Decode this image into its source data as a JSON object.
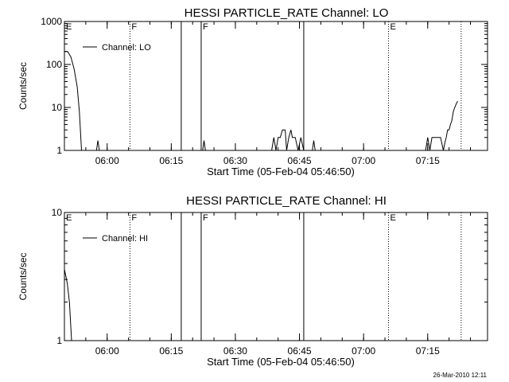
{
  "footer": {
    "date_stamp": "26-Mar-2010 12:11"
  },
  "chart_data": [
    {
      "type": "line",
      "title": "HESSI PARTICLE_RATE Channel: LO",
      "ylabel": "Counts/sec",
      "xlabel": "Start Time (05-Feb-04 05:46:50)",
      "y_scale": "log",
      "ylim": [
        1,
        1000
      ],
      "y_ticks": [
        {
          "value": 1,
          "label": "1"
        },
        {
          "value": 10,
          "label": "10"
        },
        {
          "value": 100,
          "label": "100"
        },
        {
          "value": 1000,
          "label": "1000"
        }
      ],
      "xlim": [
        "05:50:00",
        "07:29:00"
      ],
      "x_ticks": [
        {
          "value": "06:00",
          "label": "06:00"
        },
        {
          "value": "06:15",
          "label": "06:15"
        },
        {
          "value": "06:30",
          "label": "06:30"
        },
        {
          "value": "06:45",
          "label": "06:45"
        },
        {
          "value": "07:00",
          "label": "07:00"
        },
        {
          "value": "07:15",
          "label": "07:15"
        }
      ],
      "legend": {
        "placement": "top-left",
        "entries": [
          "Channel: LO"
        ]
      },
      "markers": [
        {
          "time": "05:50:00",
          "style": "solid",
          "label": "E"
        },
        {
          "time": "06:05:20",
          "style": "dotted",
          "label": "F"
        },
        {
          "time": "06:17:20",
          "style": "solid",
          "label": ""
        },
        {
          "time": "06:22:00",
          "style": "solid",
          "label": "F"
        },
        {
          "time": "06:46:00",
          "style": "solid",
          "label": ""
        },
        {
          "time": "07:05:50",
          "style": "dotted",
          "label": "E"
        },
        {
          "time": "07:22:50",
          "style": "dotted",
          "label": ""
        }
      ],
      "series": [
        {
          "points": [
            [
              "05:50:00",
              200
            ],
            [
              "05:50:45",
              200
            ],
            [
              "05:51:30",
              150
            ],
            [
              "05:52:15",
              80
            ],
            [
              "05:53:00",
              30
            ],
            [
              "05:53:30",
              8
            ],
            [
              "05:54:00",
              1
            ],
            [
              "05:54:00",
              null
            ],
            [
              "05:57:30",
              1
            ],
            [
              "05:57:50",
              1.7
            ],
            [
              "05:58:10",
              1
            ],
            [
              "05:58:10",
              null
            ],
            [
              "06:22:20",
              1
            ],
            [
              "06:22:40",
              1.7
            ],
            [
              "06:23:00",
              1
            ],
            [
              "06:23:00",
              null
            ],
            [
              "06:38:30",
              1
            ],
            [
              "06:39:00",
              2
            ],
            [
              "06:39:30",
              1
            ],
            [
              "06:40:00",
              2
            ],
            [
              "06:40:30",
              2
            ],
            [
              "06:41:00",
              3
            ],
            [
              "06:41:40",
              3
            ],
            [
              "06:42:00",
              1
            ],
            [
              "06:42:30",
              2
            ],
            [
              "06:43:00",
              3
            ],
            [
              "06:43:20",
              2
            ],
            [
              "06:44:00",
              2
            ],
            [
              "06:44:40",
              1
            ],
            [
              "06:45:20",
              2
            ],
            [
              "06:46:00",
              1
            ],
            [
              "06:46:00",
              null
            ],
            [
              "06:48:00",
              1
            ],
            [
              "06:48:20",
              1.7
            ],
            [
              "06:48:40",
              1
            ],
            [
              "06:48:40",
              null
            ],
            [
              "07:14:30",
              1
            ],
            [
              "07:15:00",
              2
            ],
            [
              "07:15:30",
              1
            ],
            [
              "07:16:00",
              2
            ],
            [
              "07:17:00",
              2
            ],
            [
              "07:18:00",
              2
            ],
            [
              "07:18:40",
              1
            ],
            [
              "07:19:00",
              1.5
            ],
            [
              "07:19:20",
              2
            ],
            [
              "07:19:40",
              3
            ],
            [
              "07:20:00",
              3
            ],
            [
              "07:20:20",
              4
            ],
            [
              "07:20:40",
              5
            ],
            [
              "07:21:00",
              8
            ],
            [
              "07:21:20",
              10
            ],
            [
              "07:21:40",
              12
            ],
            [
              "07:22:00",
              14
            ]
          ]
        }
      ]
    },
    {
      "type": "line",
      "title": "HESSI PARTICLE_RATE Channel: HI",
      "ylabel": "Counts/sec",
      "xlabel": "Start Time (05-Feb-04 05:46:50)",
      "y_scale": "log",
      "ylim": [
        1,
        10
      ],
      "y_ticks": [
        {
          "value": 1,
          "label": "1"
        },
        {
          "value": 10,
          "label": "10"
        }
      ],
      "xlim": [
        "05:50:00",
        "07:29:00"
      ],
      "x_ticks": [
        {
          "value": "06:00",
          "label": "06:00"
        },
        {
          "value": "06:15",
          "label": "06:15"
        },
        {
          "value": "06:30",
          "label": "06:30"
        },
        {
          "value": "06:45",
          "label": "06:45"
        },
        {
          "value": "07:00",
          "label": "07:00"
        },
        {
          "value": "07:15",
          "label": "07:15"
        }
      ],
      "legend": {
        "placement": "top-left",
        "entries": [
          "Channel: HI"
        ]
      },
      "markers": [
        {
          "time": "05:50:00",
          "style": "solid",
          "label": "E"
        },
        {
          "time": "06:05:20",
          "style": "dotted",
          "label": "F"
        },
        {
          "time": "06:17:20",
          "style": "solid",
          "label": ""
        },
        {
          "time": "06:22:00",
          "style": "solid",
          "label": "F"
        },
        {
          "time": "06:46:00",
          "style": "solid",
          "label": ""
        },
        {
          "time": "07:05:50",
          "style": "dotted",
          "label": "E"
        },
        {
          "time": "07:22:50",
          "style": "dotted",
          "label": ""
        }
      ],
      "series": [
        {
          "points": [
            [
              "05:50:00",
              3.6
            ],
            [
              "05:50:40",
              2.8
            ],
            [
              "05:51:10",
              2.0
            ],
            [
              "05:51:40",
              1
            ]
          ]
        }
      ]
    }
  ]
}
